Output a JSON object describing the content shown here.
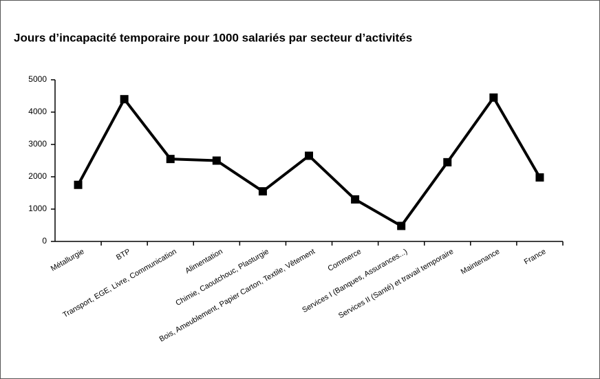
{
  "chart_data": {
    "type": "line",
    "title": "Jours d’incapacité temporaire pour 1000 salariés par secteur d’activités",
    "categories": [
      "Métallurgie",
      "BTP",
      "Transport, EGE, Livre, Communication",
      "Alimentation",
      "Chimie, Caoutchouc, Plasturgie",
      "Bois, Ameublement, Papier Carton, Textile, Vêtement",
      "Commerce",
      "Services I (Banques, Assurances...)",
      "Services II (Santé) et travail temporaire",
      "Maintenance",
      "France"
    ],
    "values": [
      1750,
      4400,
      2550,
      2500,
      1550,
      2650,
      1300,
      480,
      2450,
      4450,
      1980
    ],
    "color": "#000000",
    "ylim": [
      0,
      5000
    ],
    "yticks": [
      0,
      1000,
      2000,
      3000,
      4000,
      5000
    ],
    "grid": false
  }
}
